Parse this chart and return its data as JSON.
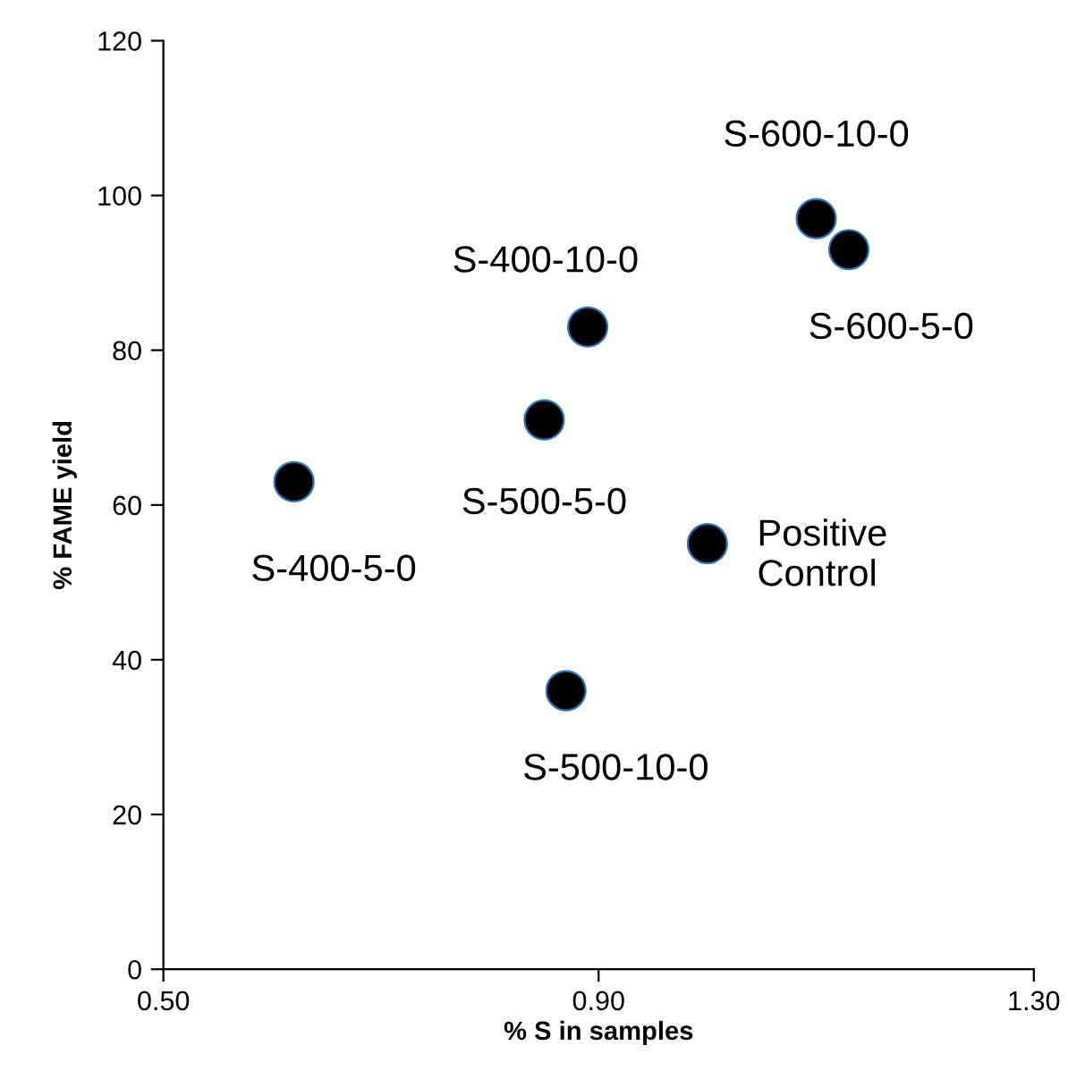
{
  "chart_data": {
    "type": "scatter",
    "xlabel": "% S in samples",
    "ylabel": "% FAME yield",
    "x": [
      0.62,
      0.85,
      0.89,
      0.87,
      1.0,
      1.1,
      1.13
    ],
    "values": [
      63,
      71,
      83,
      36,
      55,
      97,
      93
    ],
    "color": "#000000",
    "marker": "circle",
    "xlim": [
      0.5,
      1.3
    ],
    "xticks": [
      {
        "value": 0.5,
        "label": "0.50"
      },
      {
        "value": 0.9,
        "label": "0.90"
      },
      {
        "value": 1.3,
        "label": "1.30"
      }
    ],
    "ylim": [
      0,
      120
    ],
    "yticks": [
      0,
      20,
      40,
      60,
      80,
      100,
      120
    ],
    "grid": false,
    "annotations": [
      {
        "text": "S-400-5-0",
        "x": 0.62,
        "y": 63
      },
      {
        "text": "S-500-5-0",
        "x": 0.85,
        "y": 71
      },
      {
        "text": "S-400-10-0",
        "x": 0.89,
        "y": 83
      },
      {
        "text": "S-500-10-0",
        "x": 0.87,
        "y": 36
      },
      {
        "text": "Positive\nControl",
        "x": 1.0,
        "y": 55
      },
      {
        "text": "S-600-10-0",
        "x": 1.1,
        "y": 97
      },
      {
        "text": "S-600-5-0",
        "x": 1.13,
        "y": 93
      }
    ]
  }
}
